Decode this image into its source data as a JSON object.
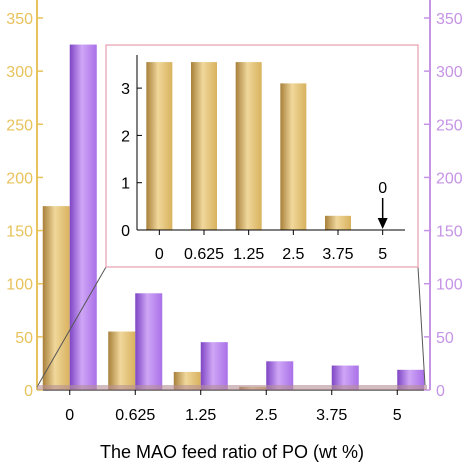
{
  "colors": {
    "gold": "#d8b25e",
    "gold_light": "#f0d79b",
    "gold_dark": "#a8803a",
    "purple": "#a970e8",
    "purple_light": "#cfa6f6",
    "purple_dark": "#7e45c4",
    "left_axis": "#e8c25a",
    "right_axis": "#c594e6",
    "inset_frame": "#e8a6b4"
  },
  "chart_data": [
    {
      "type": "bar",
      "role": "main",
      "categories": [
        "0",
        "0.625",
        "1.25",
        "2.5",
        "3.75",
        "5"
      ],
      "series": [
        {
          "axis": "left",
          "color": "gold",
          "values": [
            173,
            55,
            17,
            3,
            0,
            0
          ]
        },
        {
          "axis": "right",
          "color": "purple",
          "values": [
            325,
            91,
            45,
            27,
            23,
            19
          ]
        }
      ],
      "xlabel": "The MAO feed ratio of  PO (wt %)",
      "ylim_left": [
        0,
        350
      ],
      "ylim_right": [
        0,
        350
      ],
      "yticks_left": [
        "0",
        "50",
        "100",
        "150",
        "200",
        "250",
        "300",
        "350"
      ],
      "yticks_right": [
        "0",
        "50",
        "100",
        "150",
        "200",
        "250",
        "300",
        "350"
      ],
      "grid": false,
      "legend": "none"
    },
    {
      "type": "bar",
      "role": "inset",
      "categories": [
        "0",
        "0.625",
        "1.25",
        "2.5",
        "3.75",
        "5"
      ],
      "values": [
        3.55,
        3.55,
        3.55,
        3.1,
        0.3,
        0
      ],
      "ylim": [
        0,
        3.7
      ],
      "yticks": [
        "0",
        "1",
        "2",
        "3"
      ],
      "annotation": {
        "category": "5",
        "text": "0",
        "marker": "down-arrow"
      }
    }
  ]
}
